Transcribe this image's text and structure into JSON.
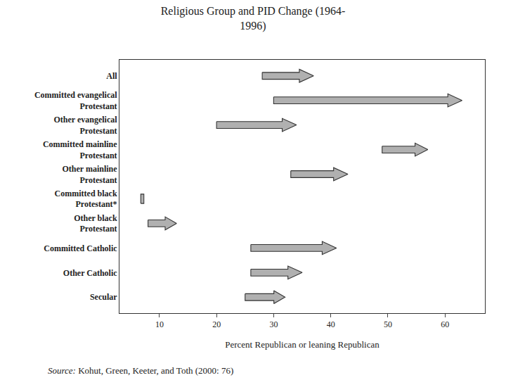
{
  "chart_data": {
    "type": "arrow",
    "title": "Religious Group and PID Change (1964-\n1996)",
    "xlabel": "Percent Republican or leaning Republican",
    "categories": [
      "All",
      "Committed evangelical\nProtestant",
      "Other evangelical\nProtestant",
      "Committed mainline\nProtestant",
      "Other mainline\nProtestant",
      "Committed black\nProtestant*",
      "Other black\nProtestant",
      "Committed Catholic",
      "Other Catholic",
      "Secular"
    ],
    "start": [
      28,
      30,
      20,
      49,
      33,
      7,
      8,
      26,
      26,
      25
    ],
    "end": [
      37,
      63,
      34,
      57,
      43,
      7,
      13,
      41,
      35,
      32
    ],
    "color": "#b0b0b0",
    "xlim": [
      3,
      67
    ],
    "xticks": [
      10,
      20,
      30,
      40,
      50,
      60
    ],
    "grid": false,
    "source": [
      "Source:",
      "Kohut, Green, Keeter, and Toth (2000: 76)"
    ]
  }
}
